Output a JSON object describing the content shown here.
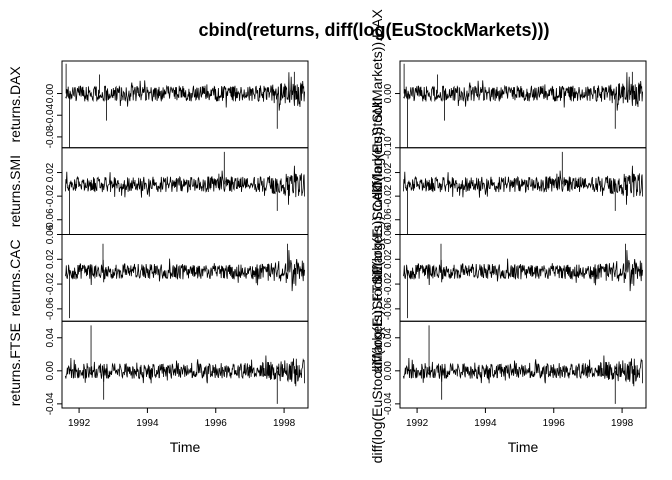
{
  "chart_data": {
    "type": "line",
    "title": "cbind(returns, diff(log(EuStockMarkets)))",
    "xlabel": "Time",
    "xlim": [
      1991.5,
      1998.7
    ],
    "x_ticks": [
      1992,
      1994,
      1996,
      1998
    ],
    "x_tick_labels": [
      "1992",
      "1994",
      "1996",
      "1998"
    ],
    "columns": [
      {
        "name": "left",
        "panels": [
          {
            "series": "returns.DAX",
            "ylabel": "returns.DAX",
            "ylim": [
              -0.1,
              0.06
            ],
            "y_ticks": [
              -0.08,
              -0.04,
              0.0
            ],
            "y_tick_labels": [
              "-0.08",
              "-0.04",
              "0.00"
            ],
            "spikes": [
              {
                "x": 1991.62,
                "y": 0.055
              },
              {
                "x": 1991.72,
                "y": -0.1
              },
              {
                "x": 1992.6,
                "y": 0.035
              },
              {
                "x": 1992.8,
                "y": -0.05
              },
              {
                "x": 1997.8,
                "y": -0.065
              },
              {
                "x": 1998.3,
                "y": 0.04
              }
            ]
          },
          {
            "series": "returns.SMI",
            "ylabel": "returns.SMI",
            "ylim": [
              -0.085,
              0.062
            ],
            "y_ticks": [
              -0.06,
              -0.02,
              0.02
            ],
            "y_tick_labels": [
              "-0.06",
              "-0.02",
              "0.02"
            ],
            "spikes": [
              {
                "x": 1991.72,
                "y": -0.085
              },
              {
                "x": 1996.25,
                "y": 0.055
              },
              {
                "x": 1997.8,
                "y": -0.045
              }
            ]
          },
          {
            "series": "returns.CAC",
            "ylabel": "returns.CAC",
            "ylim": [
              -0.08,
              0.06
            ],
            "y_ticks": [
              -0.06,
              -0.02,
              0.02,
              0.06
            ],
            "y_tick_labels": [
              "-0.06",
              "-0.02",
              "0.02",
              "0.06"
            ],
            "spikes": [
              {
                "x": 1991.72,
                "y": -0.075
              },
              {
                "x": 1992.7,
                "y": 0.045
              },
              {
                "x": 1998.1,
                "y": 0.045
              }
            ]
          },
          {
            "series": "returns.FTSE",
            "ylabel": "returns.FTSE",
            "ylim": [
              -0.045,
              0.06
            ],
            "y_ticks": [
              -0.04,
              0.0,
              0.04
            ],
            "y_tick_labels": [
              "-0.04",
              "0.00",
              "0.04"
            ],
            "spikes": [
              {
                "x": 1992.35,
                "y": 0.055
              },
              {
                "x": 1992.72,
                "y": -0.035
              },
              {
                "x": 1997.8,
                "y": -0.04
              }
            ]
          }
        ]
      },
      {
        "name": "right",
        "panels": [
          {
            "series": "diff(log(EuStockMarkets)).DAX",
            "ylabel": "diff(log(EuStockMarkets)).DAX",
            "ylim": [
              -0.1,
              0.06
            ],
            "y_ticks": [
              -0.1,
              0.0
            ],
            "y_tick_labels": [
              "-0.10",
              "0.00"
            ],
            "spikes": [
              {
                "x": 1991.62,
                "y": 0.055
              },
              {
                "x": 1991.72,
                "y": -0.1
              },
              {
                "x": 1992.6,
                "y": 0.035
              },
              {
                "x": 1992.8,
                "y": -0.05
              },
              {
                "x": 1997.8,
                "y": -0.065
              },
              {
                "x": 1998.3,
                "y": 0.04
              }
            ]
          },
          {
            "series": "diff(log(EuStockMarkets)).SMI",
            "ylabel": "diff(log(EuStockMarkets)).SMI",
            "ylim": [
              -0.085,
              0.062
            ],
            "y_ticks": [
              -0.06,
              -0.02,
              0.02
            ],
            "y_tick_labels": [
              "-0.06",
              "-0.02",
              "0.02"
            ],
            "spikes": [
              {
                "x": 1991.72,
                "y": -0.085
              },
              {
                "x": 1996.25,
                "y": 0.055
              },
              {
                "x": 1997.8,
                "y": -0.045
              }
            ]
          },
          {
            "series": "diff(log(EuStockMarkets)).CAC",
            "ylabel": "diff(log(EuStockMarkets)).CAC",
            "ylim": [
              -0.08,
              0.06
            ],
            "y_ticks": [
              -0.06,
              -0.02,
              0.02,
              0.06
            ],
            "y_tick_labels": [
              "-0.06",
              "-0.02",
              "0.02",
              "0.06"
            ],
            "spikes": [
              {
                "x": 1991.72,
                "y": -0.075
              },
              {
                "x": 1992.7,
                "y": 0.045
              },
              {
                "x": 1998.1,
                "y": 0.045
              }
            ]
          },
          {
            "series": "diff(log(EuStockMarkets)).FTSE",
            "ylabel": "diff(log(EuStockMarkets)).FTSE",
            "ylim": [
              -0.045,
              0.06
            ],
            "y_ticks": [
              -0.04,
              0.0,
              0.04
            ],
            "y_tick_labels": [
              "-0.04",
              "0.00",
              "0.04"
            ],
            "spikes": [
              {
                "x": 1992.35,
                "y": 0.055
              },
              {
                "x": 1992.72,
                "y": -0.035
              },
              {
                "x": 1997.8,
                "y": -0.04
              }
            ]
          }
        ]
      }
    ],
    "grid": false,
    "legend": "none",
    "color": "#000000"
  }
}
